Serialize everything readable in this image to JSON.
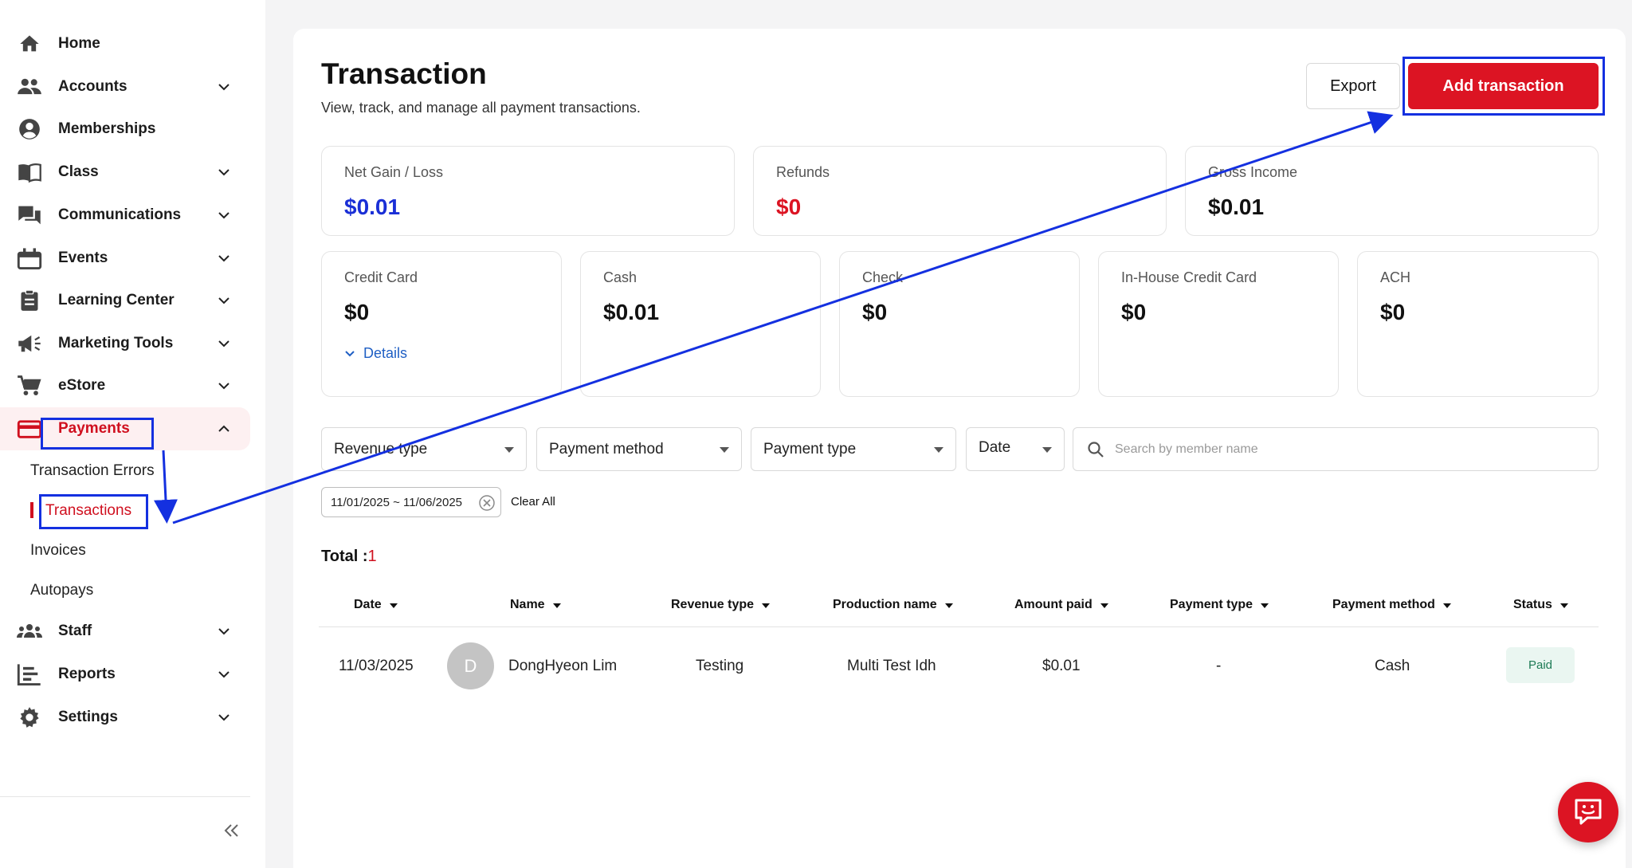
{
  "sidebar": {
    "items": [
      {
        "label": "Home",
        "icon": "home-icon"
      },
      {
        "label": "Accounts",
        "icon": "people-icon"
      },
      {
        "label": "Memberships",
        "icon": "user-circle-icon"
      },
      {
        "label": "Class",
        "icon": "book-icon"
      },
      {
        "label": "Communications",
        "icon": "chat-icon"
      },
      {
        "label": "Events",
        "icon": "calendar-icon"
      },
      {
        "label": "Learning Center",
        "icon": "clipboard-icon"
      },
      {
        "label": "Marketing Tools",
        "icon": "megaphone-icon"
      },
      {
        "label": "eStore",
        "icon": "cart-icon"
      },
      {
        "label": "Payments",
        "icon": "credit-card-icon"
      },
      {
        "label": "Staff",
        "icon": "staff-icon"
      },
      {
        "label": "Reports",
        "icon": "reports-icon"
      },
      {
        "label": "Settings",
        "icon": "gear-icon"
      }
    ],
    "payments_sub": [
      "Transaction Errors",
      "Transactions",
      "Invoices",
      "Autopays"
    ]
  },
  "header": {
    "title": "Transaction",
    "subtitle": "View, track, and manage all payment transactions.",
    "export_label": "Export",
    "add_label": "Add transaction"
  },
  "summary": [
    {
      "label": "Net Gain / Loss",
      "value": "$0.01",
      "color": "#1a2fd6"
    },
    {
      "label": "Refunds",
      "value": "$0",
      "color": "#dc1423"
    },
    {
      "label": "Gross Income",
      "value": "$0.01",
      "color": "#111111"
    }
  ],
  "methods": [
    {
      "label": "Credit Card",
      "value": "$0",
      "details": "Details"
    },
    {
      "label": "Cash",
      "value": "$0.01"
    },
    {
      "label": "Check",
      "value": "$0"
    },
    {
      "label": "In-House Credit Card",
      "value": "$0"
    },
    {
      "label": "ACH",
      "value": "$0"
    }
  ],
  "filters": {
    "revenue_type": "Revenue type",
    "payment_method": "Payment method",
    "payment_type": "Payment type",
    "date": "Date",
    "search_placeholder": "Search by member name",
    "date_chip": "11/01/2025 ~ 11/06/2025",
    "clear_all": "Clear All"
  },
  "total": {
    "label": "Total :",
    "count": "1"
  },
  "table": {
    "columns": [
      "Date",
      "Name",
      "Revenue type",
      "Production name",
      "Amount paid",
      "Payment type",
      "Payment method",
      "Status"
    ],
    "rows": [
      {
        "date": "11/03/2025",
        "avatar": "D",
        "name": "DongHyeon Lim",
        "revenue_type": "Testing",
        "production_name": "Multi Test Idh",
        "amount_paid": "$0.01",
        "payment_type": "-",
        "payment_method": "Cash",
        "status": "Paid"
      }
    ]
  },
  "colors": {
    "accent": "#dc1423",
    "annotation": "#1430e0",
    "link": "#1f5fc4"
  }
}
